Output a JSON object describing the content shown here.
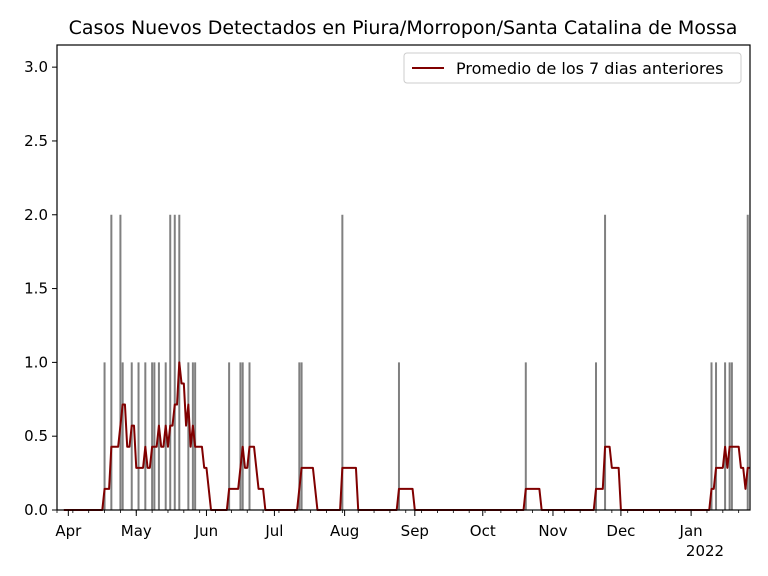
{
  "chart_data": {
    "type": "bar+line",
    "title": "Casos Nuevos Detectados en Piura/Morropon/Santa Catalina de Mossa",
    "xlabel": "",
    "ylabel": "",
    "x_start": "2021-03-27",
    "x_end": "2022-01-27",
    "ylim": [
      0,
      3.15
    ],
    "y_ticks": [
      0.0,
      0.5,
      1.0,
      1.5,
      2.0,
      2.5,
      3.0
    ],
    "y_tick_labels": [
      "0.0",
      "0.5",
      "1.0",
      "1.5",
      "2.0",
      "2.5",
      "3.0"
    ],
    "x_ticks": [
      {
        "date": "2021-04-01",
        "label": "Apr"
      },
      {
        "date": "2021-05-01",
        "label": "May"
      },
      {
        "date": "2021-06-01",
        "label": "Jun"
      },
      {
        "date": "2021-07-01",
        "label": "Jul"
      },
      {
        "date": "2021-08-01",
        "label": "Aug"
      },
      {
        "date": "2021-09-01",
        "label": "Sep"
      },
      {
        "date": "2021-10-01",
        "label": "Oct"
      },
      {
        "date": "2021-11-01",
        "label": "Nov"
      },
      {
        "date": "2021-12-01",
        "label": "Dec"
      },
      {
        "date": "2022-01-01",
        "label": "Jan"
      }
    ],
    "year_label": "2022",
    "legend": {
      "label": "Promedio de los 7 dias anteriores",
      "location": "upper-right"
    },
    "bar_color": "#808080",
    "line_color": "#800000",
    "daily_cases": [
      {
        "date": "2021-04-17",
        "value": 1
      },
      {
        "date": "2021-04-20",
        "value": 2
      },
      {
        "date": "2021-04-24",
        "value": 2
      },
      {
        "date": "2021-04-25",
        "value": 1
      },
      {
        "date": "2021-04-29",
        "value": 1
      },
      {
        "date": "2021-05-02",
        "value": 1
      },
      {
        "date": "2021-05-05",
        "value": 1
      },
      {
        "date": "2021-05-08",
        "value": 1
      },
      {
        "date": "2021-05-09",
        "value": 1
      },
      {
        "date": "2021-05-11",
        "value": 1
      },
      {
        "date": "2021-05-14",
        "value": 1
      },
      {
        "date": "2021-05-16",
        "value": 2
      },
      {
        "date": "2021-05-18",
        "value": 2
      },
      {
        "date": "2021-05-20",
        "value": 2
      },
      {
        "date": "2021-05-24",
        "value": 1
      },
      {
        "date": "2021-05-26",
        "value": 1
      },
      {
        "date": "2021-05-27",
        "value": 1
      },
      {
        "date": "2021-06-11",
        "value": 1
      },
      {
        "date": "2021-06-16",
        "value": 1
      },
      {
        "date": "2021-06-17",
        "value": 1
      },
      {
        "date": "2021-06-20",
        "value": 1
      },
      {
        "date": "2021-07-12",
        "value": 1
      },
      {
        "date": "2021-07-13",
        "value": 1
      },
      {
        "date": "2021-07-31",
        "value": 2
      },
      {
        "date": "2021-08-25",
        "value": 1
      },
      {
        "date": "2021-10-20",
        "value": 1
      },
      {
        "date": "2021-11-20",
        "value": 1
      },
      {
        "date": "2021-11-24",
        "value": 2
      },
      {
        "date": "2022-01-10",
        "value": 1
      },
      {
        "date": "2022-01-12",
        "value": 1
      },
      {
        "date": "2022-01-16",
        "value": 1
      },
      {
        "date": "2022-01-18",
        "value": 1
      },
      {
        "date": "2022-01-19",
        "value": 1
      },
      {
        "date": "2022-01-26",
        "value": 2
      }
    ]
  }
}
